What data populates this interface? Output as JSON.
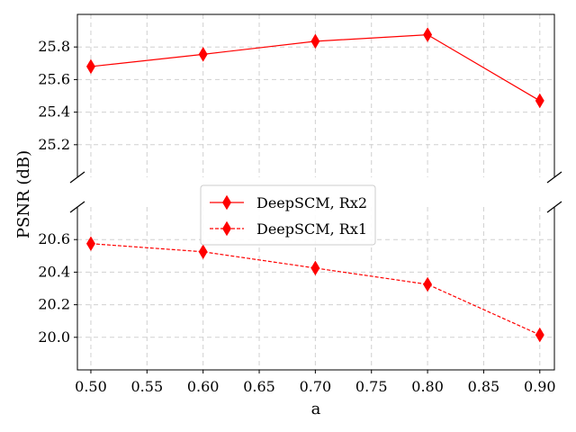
{
  "chart_data": {
    "type": "line",
    "xlabel": "a",
    "ylabel": "PSNR (dB)",
    "x": [
      0.5,
      0.6,
      0.7,
      0.8,
      0.9
    ],
    "x_ticks": [
      "0.50",
      "0.55",
      "0.60",
      "0.65",
      "0.70",
      "0.75",
      "0.80",
      "0.85",
      "0.90"
    ],
    "xlim": [
      0.488,
      0.913
    ],
    "broken_y_axis": true,
    "upper_panel": {
      "ylim": [
        25.0,
        26.0
      ],
      "y_ticks": [
        "25.2",
        "25.4",
        "25.6",
        "25.8"
      ]
    },
    "lower_panel": {
      "ylim": [
        19.8,
        20.8
      ],
      "y_ticks": [
        "20.0",
        "20.2",
        "20.4",
        "20.6"
      ]
    },
    "grid": true,
    "legend_position": "center",
    "series": [
      {
        "name": "DeepSCM, Rx2",
        "values": [
          25.68,
          25.755,
          25.835,
          25.875,
          25.47
        ],
        "color": "#ff0000",
        "line_style": "solid",
        "marker": "thin-diamond",
        "panel": "upper"
      },
      {
        "name": "DeepSCM, Rx1",
        "values": [
          20.575,
          20.525,
          20.425,
          20.325,
          20.015
        ],
        "color": "#ff0000",
        "line_style": "dashed",
        "marker": "thin-diamond",
        "panel": "lower"
      }
    ]
  }
}
